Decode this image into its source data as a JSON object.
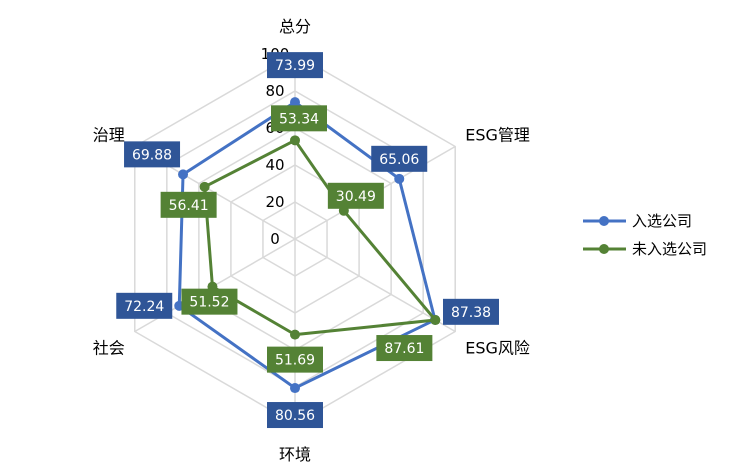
{
  "chart_data": {
    "type": "radar",
    "categories": [
      "总分",
      "ESG管理",
      "ESG风险",
      "环境",
      "社会",
      "治理"
    ],
    "rlim": [
      0,
      100
    ],
    "ticks": [
      0,
      20,
      40,
      60,
      80,
      100
    ],
    "grid": true,
    "legend_position": "right",
    "series": [
      {
        "name": "入选公司",
        "color": "#4472C4",
        "label_bg": "#2F5597",
        "values": [
          73.99,
          65.06,
          87.38,
          80.56,
          72.24,
          69.88
        ],
        "labels": [
          "73.99",
          "65.06",
          "87.38",
          "80.56",
          "72.24",
          "69.88"
        ]
      },
      {
        "name": "未入选公司",
        "color": "#548235",
        "label_bg": "#548235",
        "values": [
          53.34,
          30.49,
          87.61,
          51.69,
          51.52,
          56.41
        ],
        "labels": [
          "53.34",
          "30.49",
          "87.61",
          "51.69",
          "51.52",
          "56.41"
        ]
      }
    ]
  }
}
